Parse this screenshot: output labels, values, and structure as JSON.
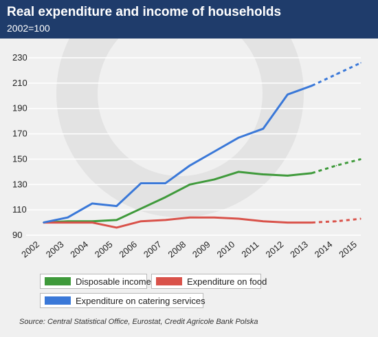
{
  "header": {
    "title": "Real expenditure and income of households",
    "subtitle": "2002=100"
  },
  "chart_data": {
    "type": "line",
    "title": "Real expenditure and income of households",
    "subtitle": "2002=100",
    "x": [
      "2002",
      "2003",
      "2004",
      "2005",
      "2006",
      "2007",
      "2008",
      "2009",
      "2010",
      "2011",
      "2012",
      "2013",
      "2014",
      "2015"
    ],
    "ylim": [
      90,
      230
    ],
    "yticks": [
      90,
      110,
      130,
      150,
      170,
      190,
      210,
      230
    ],
    "grid": true,
    "forecast_from": "2013",
    "series": [
      {
        "name": "Disposable income",
        "color": "#3f9a3b",
        "values": [
          100,
          101,
          101,
          102,
          111,
          120,
          130,
          134,
          140,
          138,
          137,
          139,
          145,
          150
        ]
      },
      {
        "name": "Expenditure on food",
        "color": "#d9524a",
        "values": [
          100,
          100,
          100,
          96,
          101,
          102,
          104,
          104,
          103,
          101,
          100,
          100,
          101,
          103
        ]
      },
      {
        "name": "Expenditure on catering services",
        "color": "#3a78d8",
        "values": [
          100,
          104,
          115,
          113,
          131,
          131,
          145,
          156,
          167,
          174,
          201,
          208,
          217,
          226
        ]
      }
    ],
    "legend": "bottom-left"
  },
  "source": "Source: Central Statistical Office, Eurostat, Credit Agricole Bank Polska"
}
